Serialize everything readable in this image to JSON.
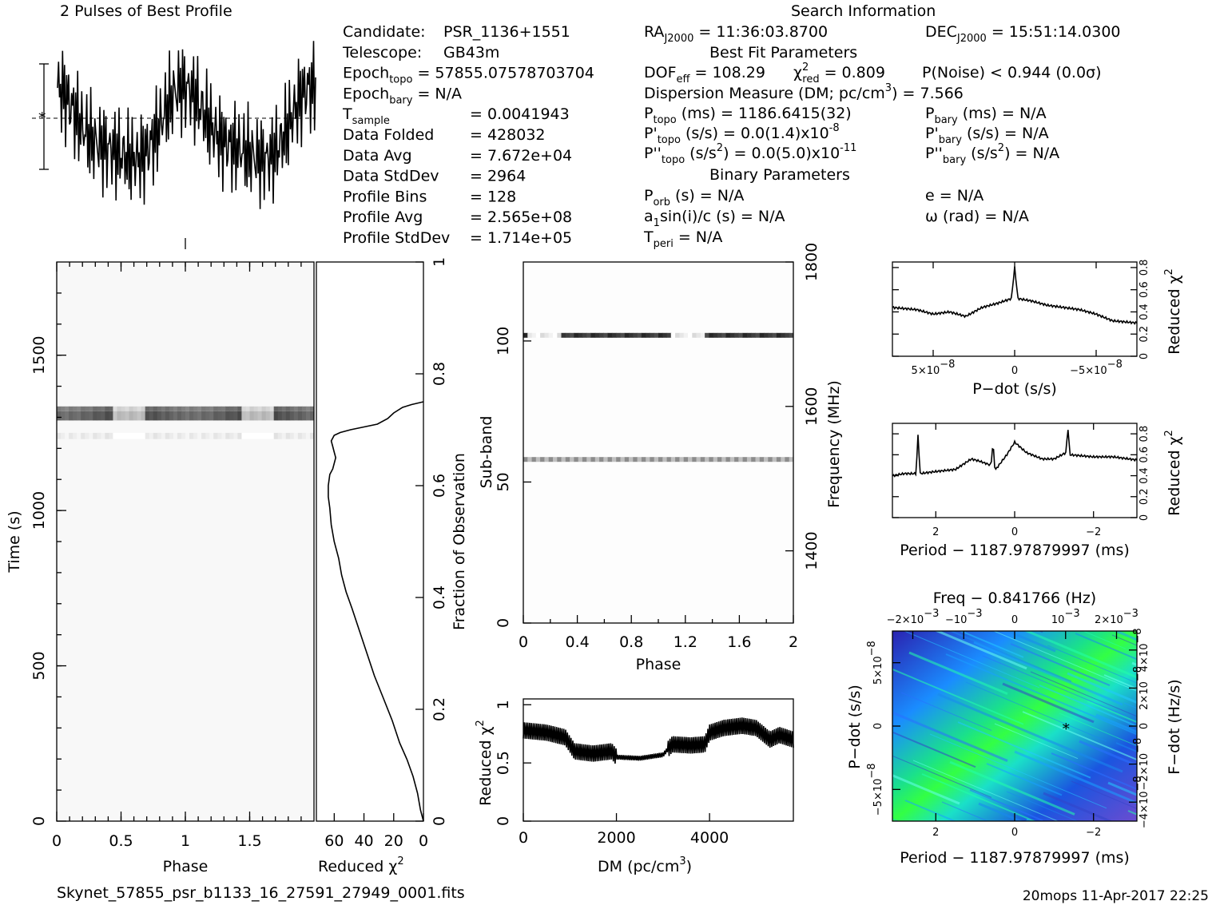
{
  "profile": {
    "title": "2 Pulses of Best Profile"
  },
  "info_left": [
    {
      "label": "Candidate:",
      "value": "PSR_1136+1551"
    },
    {
      "label": "Telescope:",
      "value": "GB43m"
    },
    {
      "label": "Epoch",
      "sub": "topo",
      "value": "= 57855.07578703704"
    },
    {
      "label": "Epoch",
      "sub": "bary",
      "value": "= N/A"
    },
    {
      "label": "T",
      "sub": "sample",
      "value": "=   0.0041943"
    },
    {
      "label": "Data Folded",
      "value": "=   428032"
    },
    {
      "label": "Data Avg",
      "value": "=   7.672e+04"
    },
    {
      "label": "Data StdDev",
      "value": "=   2964"
    },
    {
      "label": "Profile Bins",
      "value": "=   128"
    },
    {
      "label": "Profile Avg",
      "value": "=   2.565e+08"
    },
    {
      "label": "Profile StdDev",
      "value": "=   1.714e+05"
    }
  ],
  "search_info": {
    "title": "Search Information",
    "ra": "RA",
    "ra_sub": "J2000",
    "ra_value": "= 11:36:03.8700",
    "dec": "DEC",
    "dec_sub": "J2000",
    "dec_value": "= 15:51:14.0300",
    "best_fit_title": "Best Fit Parameters",
    "dof": "DOF",
    "dof_sub": "eff",
    "dof_value": "= 108.29",
    "chi": "χ",
    "chi_sup": "2",
    "chi_sub": "red",
    "chi_value": "= 0.809",
    "pnoise": "P(Noise) < 0.944   (0.0σ)",
    "dm_line": "Dispersion Measure (DM; pc/cm",
    "dm_sup": "3",
    "dm_value": ") = 7.566",
    "p_topo": "P",
    "p_topo_sub": "topo",
    "p_topo_value": "(ms) =  1186.6415(32)",
    "p_bary": "P",
    "p_bary_sub": "bary",
    "p_bary_value": "(ms) = N/A",
    "pd_topo": "P'",
    "pd_topo_sub": "topo",
    "pd_topo_value": "(s/s) = 0.0(1.4)x10",
    "pd_topo_exp": "-8",
    "pd_bary": "P'",
    "pd_bary_sub": "bary",
    "pd_bary_value": "(s/s) = N/A",
    "pdd_topo": "P''",
    "pdd_topo_sub": "topo",
    "pdd_topo_value": "(s/s",
    "pdd_topo_sup": "2",
    "pdd_topo_value2": ") = 0.0(5.0)x10",
    "pdd_topo_exp": "-11",
    "pdd_bary": "P''",
    "pdd_bary_sub": "bary",
    "pdd_bary_value": "(s/s",
    "pdd_bary_sup": "2",
    "pdd_bary_value2": ") = N/A",
    "binary_title": "Binary Parameters",
    "porb": "P",
    "porb_sub": "orb",
    "porb_value": "(s) = N/A",
    "ecc": "e = N/A",
    "a1": "a",
    "a1_sub": "1",
    "a1_value": "sin(i)/c (s) = N/A",
    "omega": "ω (rad) = N/A",
    "tperi": "T",
    "tperi_sub": "peri",
    "tperi_value": "= N/A"
  },
  "footer": {
    "filename": "Skynet_57855_psr_b1133_16_27591_27949_0001.fits",
    "stamp": "20mops 11-Apr-2017 22:25"
  },
  "chart_data": [
    {
      "id": "time-phase",
      "type": "heatmap",
      "xlabel": "Phase",
      "ylabel": "Time (s)",
      "xticks": [
        "0",
        "0.5",
        "1",
        "1.5"
      ],
      "xtick_values": [
        0,
        0.5,
        1,
        1.5
      ],
      "yticks": [
        "0",
        "500",
        "1000",
        "1500"
      ],
      "ytick_values": [
        0,
        500,
        1000,
        1500
      ],
      "xlim": [
        0,
        2
      ],
      "ylim": [
        0,
        1800
      ],
      "bright_rows": [
        {
          "time": [
            1290,
            1320
          ],
          "level": 0.25
        },
        {
          "time": [
            1320,
            1335
          ],
          "level": 0.35
        },
        {
          "time": [
            1230,
            1250
          ],
          "level": 0.88
        }
      ]
    },
    {
      "id": "fraction-chi",
      "type": "line",
      "xlabel": "Reduced χ",
      "xlabel_sup": "2",
      "ylabel": "Fraction of Observation",
      "xticks": [
        "60",
        "40",
        "20",
        "0"
      ],
      "xtick_values": [
        60,
        40,
        20,
        0
      ],
      "yticks": [
        "0",
        "0.2",
        "0.4",
        "0.6",
        "0.8",
        "1"
      ],
      "ytick_values": [
        0,
        0.2,
        0.4,
        0.6,
        0.8,
        1
      ],
      "xlim": [
        72,
        0
      ],
      "ylim": [
        0,
        1
      ],
      "x": [
        0,
        2,
        4,
        7,
        11,
        16,
        21,
        27,
        33,
        38,
        43,
        48,
        52,
        55,
        57,
        60,
        62,
        63,
        64,
        64,
        63,
        61,
        59,
        60,
        61,
        62,
        60,
        56,
        49,
        40,
        31,
        24,
        20,
        14,
        8,
        0
      ],
      "y": [
        0,
        0.02,
        0.05,
        0.08,
        0.11,
        0.14,
        0.18,
        0.22,
        0.26,
        0.3,
        0.34,
        0.38,
        0.41,
        0.44,
        0.47,
        0.5,
        0.53,
        0.56,
        0.58,
        0.6,
        0.62,
        0.63,
        0.65,
        0.66,
        0.67,
        0.68,
        0.69,
        0.695,
        0.7,
        0.705,
        0.71,
        0.72,
        0.73,
        0.74,
        0.745,
        0.75
      ]
    },
    {
      "id": "subband-phase",
      "type": "heatmap",
      "xlabel": "Phase",
      "ylabel": "Sub-band",
      "y2label": "Frequency (MHz)",
      "xticks": [
        "0",
        "0.4",
        "0.8",
        "1.2",
        "1.6",
        "2"
      ],
      "xtick_values": [
        0,
        0.4,
        0.8,
        1.2,
        1.6,
        2
      ],
      "yticks": [
        "0",
        "50",
        "100"
      ],
      "ytick_values": [
        0,
        50,
        100
      ],
      "y2ticks": [
        "1400",
        "1600",
        "1800"
      ],
      "y2tick_values": [
        1400,
        1600,
        1800
      ],
      "xlim": [
        0,
        2
      ],
      "ylim": [
        0,
        128
      ],
      "y2lim": [
        1300,
        1800
      ],
      "bright_rows": [
        {
          "subband": 102,
          "level": 0.15
        },
        {
          "subband": 58,
          "level": 0.55
        }
      ]
    },
    {
      "id": "dm-chi",
      "type": "line",
      "xlabel": "DM (pc/cm",
      "xlabel_sup": "3",
      "xlabel_end": ")",
      "ylabel": "Reduced χ",
      "ylabel_sup": "2",
      "xticks": [
        "0",
        "2000",
        "4000"
      ],
      "xtick_values": [
        0,
        2000,
        4000
      ],
      "yticks": [
        "0",
        "0.5",
        "1"
      ],
      "ytick_values": [
        0,
        0.5,
        1
      ],
      "xlim": [
        0,
        5800
      ],
      "ylim": [
        0,
        1.05
      ],
      "x": [
        0,
        500,
        900,
        1100,
        1500,
        1900,
        2000,
        2500,
        3000,
        3200,
        3600,
        3900,
        4000,
        4300,
        4700,
        5000,
        5300,
        5500,
        5800
      ],
      "y": [
        0.78,
        0.76,
        0.72,
        0.6,
        0.58,
        0.6,
        0.55,
        0.54,
        0.57,
        0.66,
        0.65,
        0.66,
        0.76,
        0.8,
        0.82,
        0.8,
        0.7,
        0.74,
        0.7
      ]
    },
    {
      "id": "pdot-chi",
      "type": "line",
      "xlabel": "P−dot (s/s)",
      "ylabel": "Reduced χ",
      "ylabel_sup": "2",
      "xticks": [
        "5×10",
        "0",
        "−5×10"
      ],
      "xtick_exp": "−8",
      "xtick_values": [
        5e-08,
        0,
        -5e-08
      ],
      "yticks": [
        "0",
        "0.2",
        "0.4",
        "0.6",
        "0.8"
      ],
      "ytick_values": [
        0,
        0.2,
        0.4,
        0.6,
        0.8
      ],
      "xlim": [
        7.5e-08,
        -7.5e-08
      ],
      "ylim": [
        0,
        0.85
      ],
      "x": [
        7.5e-08,
        6e-08,
        5e-08,
        4e-08,
        3e-08,
        2e-08,
        1e-08,
        2e-09,
        0,
        -2e-09,
        -1e-08,
        -2e-08,
        -3e-08,
        -4e-08,
        -5e-08,
        -6e-08,
        -7.5e-08
      ],
      "y": [
        0.44,
        0.42,
        0.38,
        0.4,
        0.36,
        0.44,
        0.48,
        0.52,
        0.8,
        0.52,
        0.5,
        0.46,
        0.44,
        0.42,
        0.38,
        0.32,
        0.3
      ]
    },
    {
      "id": "period-chi",
      "type": "line",
      "xlabel": "Period − 1187.97879997 (ms)",
      "ylabel": "Reduced χ",
      "ylabel_sup": "2",
      "xticks": [
        "2",
        "0",
        "−2"
      ],
      "xtick_values": [
        2,
        0,
        -2
      ],
      "yticks": [
        "0",
        "0.2",
        "0.4",
        "0.6",
        "0.8"
      ],
      "ytick_values": [
        0,
        0.2,
        0.4,
        0.6,
        0.8
      ],
      "xlim": [
        3.1,
        -3.1
      ],
      "ylim": [
        0,
        0.9
      ],
      "x": [
        3.1,
        2.8,
        2.5,
        2.45,
        2.4,
        2.0,
        1.5,
        1.1,
        0.9,
        0.6,
        0.55,
        0.5,
        0.2,
        0,
        -0.3,
        -0.7,
        -1.0,
        -1.3,
        -1.35,
        -1.4,
        -2.0,
        -2.5,
        -3.1
      ],
      "y": [
        0.4,
        0.42,
        0.42,
        0.8,
        0.42,
        0.44,
        0.46,
        0.56,
        0.54,
        0.5,
        0.72,
        0.45,
        0.6,
        0.72,
        0.62,
        0.56,
        0.56,
        0.62,
        0.86,
        0.6,
        0.58,
        0.58,
        0.55
      ]
    },
    {
      "id": "period-pdot",
      "type": "heatmap",
      "title": "Freq − 0.841766 (Hz)",
      "xlabel": "Period − 1187.97879997 (ms)",
      "ylabel": "P−dot (s/s)",
      "y2label": "F−dot (Hz/s)",
      "xticks": [
        "2",
        "0",
        "−2"
      ],
      "xtick_values": [
        2,
        0,
        -2
      ],
      "x2ticks": [
        "−2×10",
        "−10",
        "0",
        "10",
        "2×10"
      ],
      "x2tick_exp": "−3",
      "x2tick_values": [
        -0.002,
        -0.001,
        0,
        0.001,
        0.002
      ],
      "yticks": [
        "5×10",
        "0",
        "−5×10"
      ],
      "ytick_exp": "−8",
      "ytick_values": [
        5e-08,
        0,
        -5e-08
      ],
      "y2ticks": [
        "−4×10",
        "−2×10",
        "0",
        "2×10",
        "4×10"
      ],
      "y2tick_exp": "−8",
      "y2tick_values": [
        -4e-08,
        -2e-08,
        0,
        2e-08,
        4e-08
      ],
      "xlim": [
        3.1,
        -3.1
      ],
      "ylim": [
        7.5e-08,
        -7.5e-08
      ],
      "best": {
        "x": -1.3,
        "y": 0
      },
      "colors": {
        "low": "#1a1aa8",
        "mid": "#1a8cff",
        "high": "#22ff66",
        "peak": "#a0ff33",
        "edge": "#a98ce0"
      }
    }
  ]
}
